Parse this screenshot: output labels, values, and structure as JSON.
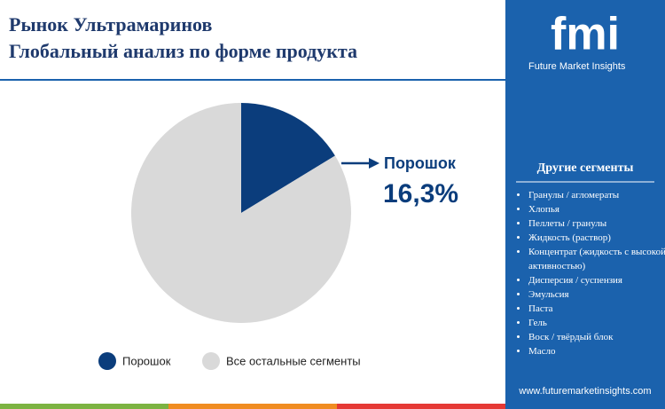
{
  "chart_data": {
    "type": "pie",
    "title": "Рынок Ультрамаринов",
    "subtitle": "Глобальный анализ по форме продукта",
    "categories": [
      "Порошок",
      "Все остальные сегменты"
    ],
    "values": [
      16.3,
      83.7
    ],
    "value_labels": [
      "16,3%",
      null
    ],
    "colors": [
      "#0b3d7c",
      "#d9d9d9"
    ],
    "legend": "bottom"
  },
  "sidebar": {
    "logo": "fmi",
    "brand": "Future Market Insights",
    "heading": "Другие сегменты",
    "items": [
      "Гранулы / агломераты",
      "Хлопья",
      "Пеллеты / гранулы",
      "Жидкость (раствор)",
      "Концентрат (жидкость с высокой активностью)",
      "Дисперсия / суспензия",
      "Эмульсия",
      "Паста",
      "Гель",
      "Воск / твёрдый блок",
      "Масло"
    ],
    "url": "www.futuremarketinsights.com"
  }
}
